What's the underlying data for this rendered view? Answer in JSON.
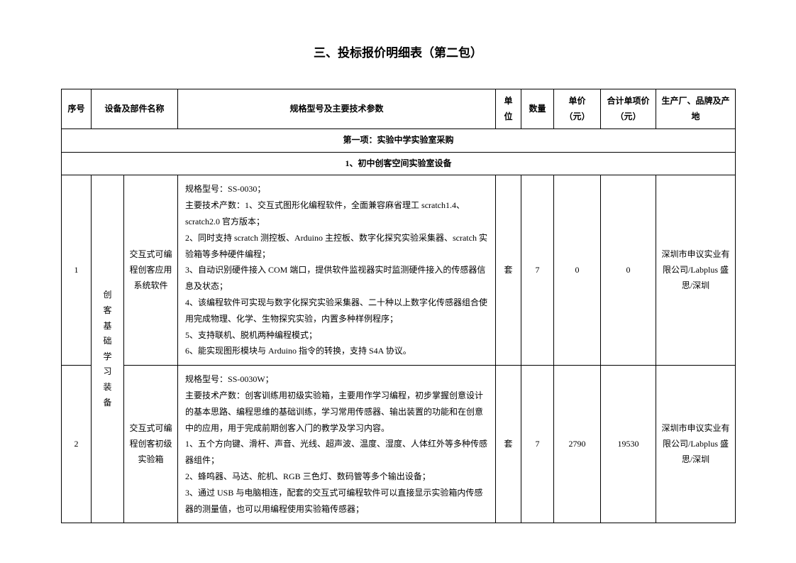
{
  "title": "三、投标报价明细表（第二包）",
  "headers": {
    "seq": "序号",
    "name": "设备及部件名称",
    "spec": "规格型号及主要技术参数",
    "unit": "单位",
    "qty": "数量",
    "price": "单价（元）",
    "total": "合计单项价（元）",
    "origin": "生产厂、品牌及产地"
  },
  "section1": "第一项：实验中学实验室采购",
  "subsection1": "1、初中创客空间实验室设备",
  "category": "创客基础学习装备",
  "row1": {
    "seq": "1",
    "name": "交互式可编程创客应用系统软件",
    "spec": "规格型号：SS-0030；\n主要技术产数：1、交互式图形化编程软件，全面兼容麻省理工 scratch1.4、scratch2.0 官方版本；\n2、同时支持 scratch 测控板、Arduino 主控板、数字化探究实验采集器、scratch 实验箱等多种硬件编程；\n3、自动识别硬件接入 COM 端口，提供软件监视器实时监测硬件接入的传感器信息及状态；\n4、该编程软件可实现与数字化探究实验采集器、二十种以上数字化传感器组合使用完成物理、化学、生物探究实验，内置多种样例程序；\n5、支持联机、脱机两种编程模式；\n6、能实现图形模块与 Arduino 指令的转换，支持 S4A 协议。",
    "unit": "套",
    "qty": "7",
    "price": "0",
    "total": "0",
    "origin": "深圳市申议实业有限公司/Labplus 盛思/深圳"
  },
  "row2": {
    "seq": "2",
    "name": "交互式可编程创客初级实验箱",
    "spec": "规格型号：SS-0030W；\n主要技术产数：创客训练用初级实验箱，主要用作学习编程，初步掌握创意设计的基本思路、编程思维的基础训练，学习常用传感器、输出装置的功能和在创意中的应用，用于完成前期创客入门的教学及学习内容。\n1、五个方向键、滑杆、声音、光线、超声波、温度、湿度、人体红外等多种传感器组件；\n2、蜂鸣器、马达、舵机、RGB 三色灯、数码管等多个输出设备；\n3、通过 USB 与电脑相连，配套的交互式可编程软件可以直接显示实验箱内传感器的测量值，也可以用编程使用实验箱传感器；",
    "unit": "套",
    "qty": "7",
    "price": "2790",
    "total": "19530",
    "origin": "深圳市申议实业有限公司/Labplus 盛思/深圳"
  }
}
